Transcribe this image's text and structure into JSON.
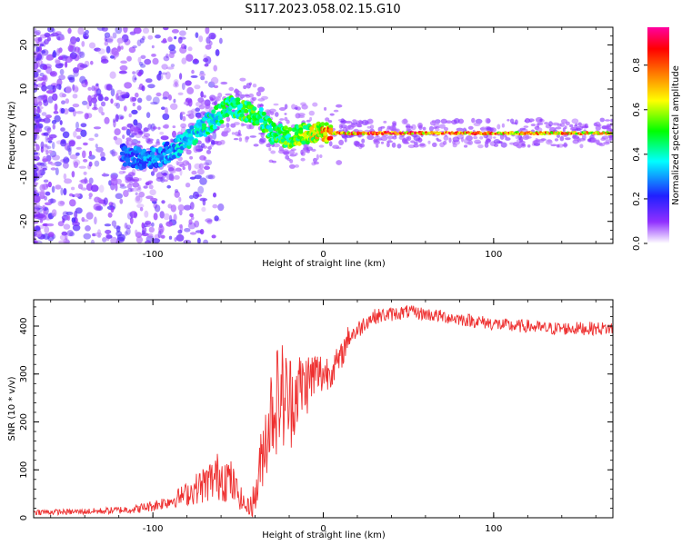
{
  "title": "S117.2023.058.02.15.G10",
  "chart_data": [
    {
      "type": "heatmap",
      "xlabel": "Height of straight line (km)",
      "ylabel": "Frequency (Hz)",
      "xlim": [
        -170,
        170
      ],
      "ylim": [
        -25,
        24
      ],
      "xticks": [
        -100,
        0,
        100
      ],
      "yticks": [
        -20,
        -10,
        0,
        10,
        20
      ],
      "colorbar": {
        "label": "Normalized spectral amplitude",
        "range": [
          0,
          0.97
        ],
        "ticks": [
          0.0,
          0.2,
          0.4,
          0.6,
          0.8
        ],
        "colormap": [
          "#ffffff",
          "#9030ff",
          "#2020ff",
          "#00ffff",
          "#00ff00",
          "#ffff00",
          "#ff8000",
          "#ff0000",
          "#ff00a0"
        ]
      },
      "ridge": {
        "x": [
          -115,
          -105,
          -95,
          -85,
          -75,
          -65,
          -55,
          -45,
          -38,
          -30,
          -20,
          -10,
          0,
          20,
          60,
          100,
          140,
          170
        ],
        "y": [
          -5,
          -6,
          -5,
          -3,
          0,
          3,
          6,
          5,
          4,
          0,
          -1,
          0,
          0,
          0,
          0,
          0,
          0,
          0
        ],
        "amplitude": [
          0.3,
          0.35,
          0.35,
          0.4,
          0.45,
          0.5,
          0.55,
          0.6,
          0.55,
          0.55,
          0.6,
          0.7,
          0.85,
          0.95,
          0.95,
          0.9,
          0.85,
          0.8
        ]
      }
    },
    {
      "type": "line",
      "xlabel": "Height of straight line (km)",
      "ylabel": "SNR (10 * v/v)",
      "xlim": [
        -170,
        170
      ],
      "ylim": [
        0,
        455
      ],
      "xticks": [
        -100,
        0,
        100
      ],
      "yticks": [
        0,
        100,
        200,
        300,
        400
      ],
      "color": "#ee3030",
      "series": [
        {
          "x": [
            -170,
            -150,
            -130,
            -110,
            -100,
            -90,
            -80,
            -70,
            -60,
            -55,
            -50,
            -45,
            -40,
            -35,
            -30,
            -25,
            -20,
            -15,
            -10,
            -5,
            0,
            5,
            10,
            15,
            20,
            25,
            30,
            40,
            50,
            60,
            70,
            80,
            90,
            100,
            110,
            120,
            130,
            140,
            150,
            160,
            170
          ],
          "y": [
            12,
            12,
            14,
            18,
            25,
            35,
            50,
            70,
            90,
            80,
            50,
            20,
            40,
            150,
            230,
            260,
            240,
            270,
            280,
            300,
            300,
            310,
            330,
            380,
            390,
            410,
            420,
            425,
            430,
            425,
            420,
            415,
            410,
            405,
            400,
            400,
            395,
            395,
            395,
            395,
            395
          ],
          "noise": [
            6,
            6,
            7,
            9,
            12,
            15,
            25,
            40,
            55,
            50,
            30,
            15,
            40,
            80,
            110,
            120,
            110,
            80,
            70,
            55,
            45,
            35,
            30,
            25,
            20,
            18,
            16,
            15,
            14,
            14,
            14,
            14,
            14,
            14,
            14,
            14,
            14,
            14,
            14,
            14,
            14
          ]
        }
      ]
    }
  ]
}
